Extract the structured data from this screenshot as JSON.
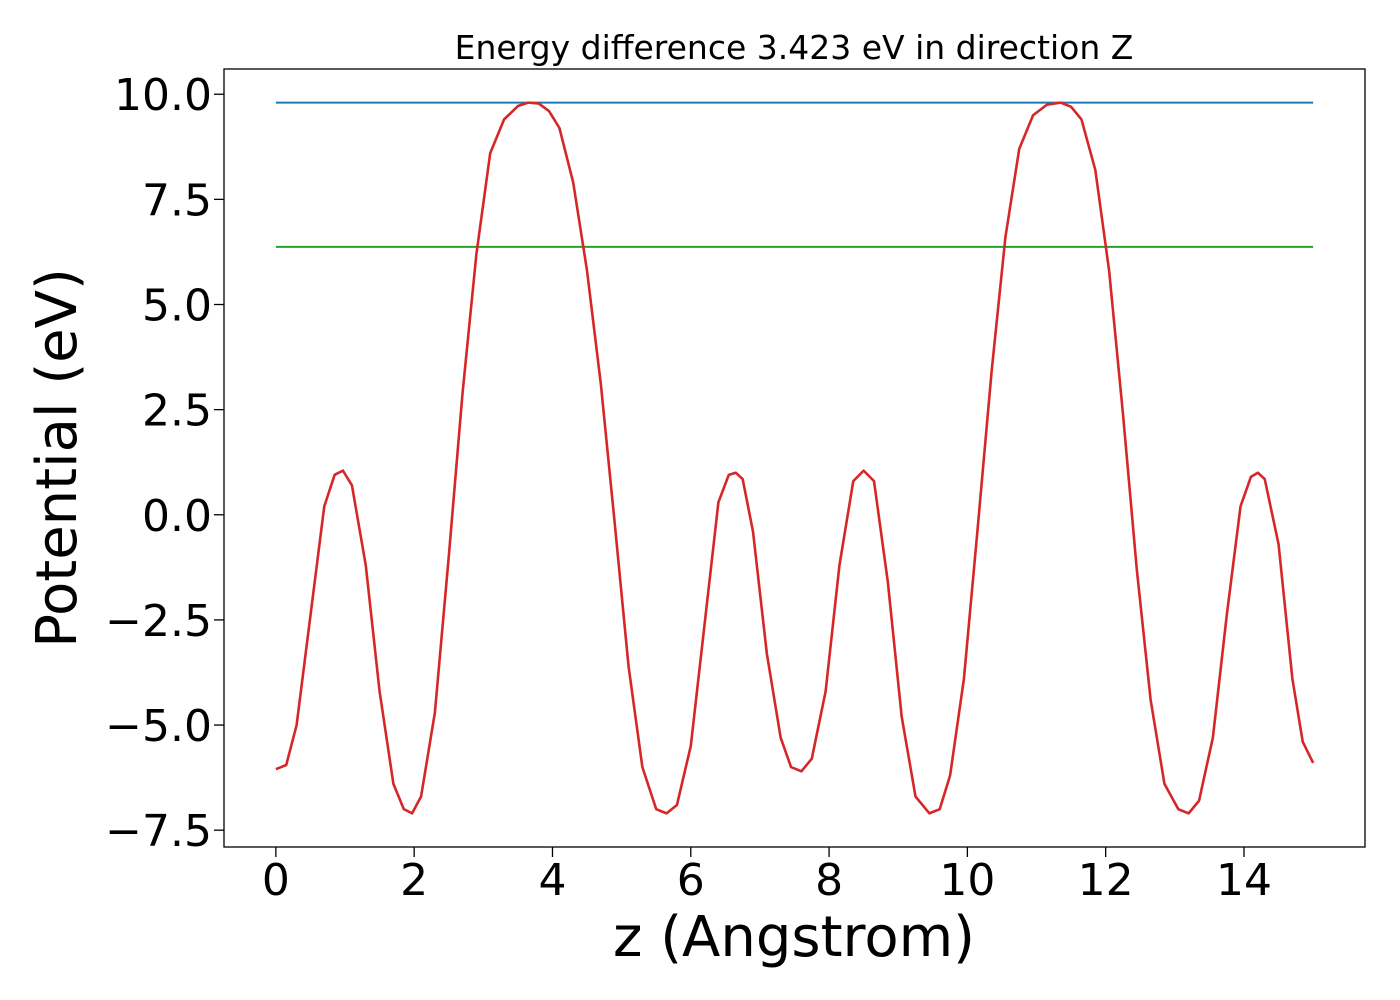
{
  "chart_data": {
    "type": "line",
    "title": "Energy difference 3.423 eV in direction Z",
    "xlabel": "z (Angstrom)",
    "ylabel": "Potential (eV)",
    "xlim": [
      -0.75,
      15.75
    ],
    "ylim": [
      -7.9,
      10.6
    ],
    "xticks": [
      0,
      2,
      4,
      6,
      8,
      10,
      12,
      14
    ],
    "xtick_labels": [
      "0",
      "2",
      "4",
      "6",
      "8",
      "10",
      "12",
      "14"
    ],
    "yticks": [
      10.0,
      7.5,
      5.0,
      2.5,
      0.0,
      -2.5,
      -5.0,
      -7.5
    ],
    "ytick_labels": [
      "10.0",
      "7.5",
      "5.0",
      "2.5",
      "0.0",
      "−2.5",
      "−5.0",
      "−7.5"
    ],
    "grid": false,
    "series": [
      {
        "color": "#1f77b4",
        "x": [
          0,
          15
        ],
        "y": [
          9.8,
          9.8
        ]
      },
      {
        "color": "#2ca02c",
        "x": [
          0,
          15
        ],
        "y": [
          6.37,
          6.37
        ]
      },
      {
        "color": "#d62728",
        "x": [
          0,
          0.15,
          0.3,
          0.5,
          0.7,
          0.85,
          0.97,
          1.1,
          1.3,
          1.5,
          1.7,
          1.85,
          1.97,
          2.1,
          2.3,
          2.5,
          2.7,
          2.9,
          3.1,
          3.3,
          3.5,
          3.65,
          3.8,
          3.95,
          4.1,
          4.3,
          4.5,
          4.7,
          4.9,
          5.1,
          5.3,
          5.5,
          5.65,
          5.8,
          6.0,
          6.2,
          6.4,
          6.55,
          6.65,
          6.75,
          6.9,
          7.1,
          7.3,
          7.45,
          7.6,
          7.75,
          7.95,
          8.15,
          8.35,
          8.5,
          8.65,
          8.85,
          9.05,
          9.25,
          9.45,
          9.6,
          9.75,
          9.95,
          10.15,
          10.35,
          10.55,
          10.75,
          10.95,
          11.15,
          11.35,
          11.5,
          11.65,
          11.85,
          12.05,
          12.25,
          12.45,
          12.65,
          12.85,
          13.05,
          13.2,
          13.35,
          13.55,
          13.75,
          13.95,
          14.1,
          14.2,
          14.3,
          14.5,
          14.7,
          14.85,
          15.0
        ],
        "y": [
          -6.05,
          -5.95,
          -5.0,
          -2.4,
          0.2,
          0.95,
          1.05,
          0.7,
          -1.2,
          -4.2,
          -6.4,
          -7.0,
          -7.1,
          -6.7,
          -4.7,
          -1.0,
          2.9,
          6.2,
          8.6,
          9.4,
          9.72,
          9.8,
          9.78,
          9.6,
          9.2,
          7.9,
          5.8,
          3.1,
          -0.2,
          -3.6,
          -6.0,
          -7.0,
          -7.1,
          -6.9,
          -5.5,
          -2.6,
          0.3,
          0.95,
          1.0,
          0.85,
          -0.4,
          -3.3,
          -5.3,
          -6.0,
          -6.1,
          -5.8,
          -4.2,
          -1.2,
          0.8,
          1.05,
          0.8,
          -1.6,
          -4.8,
          -6.7,
          -7.1,
          -7.0,
          -6.2,
          -3.9,
          -0.3,
          3.4,
          6.6,
          8.7,
          9.5,
          9.75,
          9.8,
          9.7,
          9.4,
          8.2,
          5.8,
          2.4,
          -1.3,
          -4.4,
          -6.4,
          -7.0,
          -7.1,
          -6.8,
          -5.3,
          -2.4,
          0.2,
          0.9,
          1.0,
          0.85,
          -0.7,
          -3.9,
          -5.4,
          -5.9
        ]
      }
    ]
  }
}
